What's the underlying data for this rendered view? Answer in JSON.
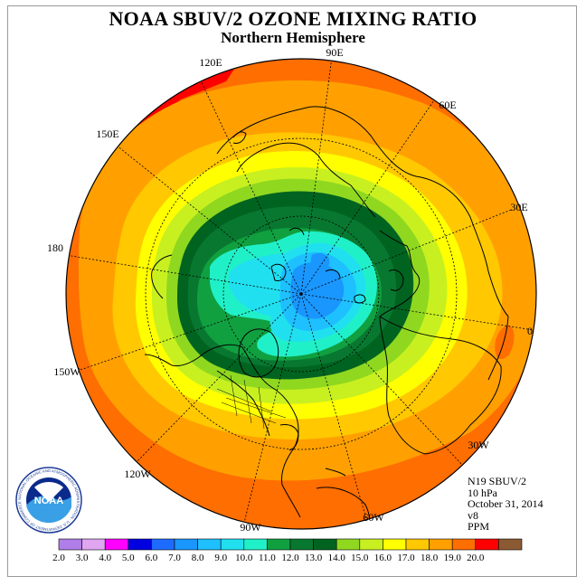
{
  "header": {
    "title": "NOAA SBUV/2 OZONE MIXING RATIO",
    "subtitle": "Northern Hemisphere"
  },
  "longitude_labels": [
    "90E",
    "60E",
    "30E",
    "0",
    "30W",
    "60W",
    "90W",
    "120W",
    "150W",
    "180",
    "150E",
    "120E"
  ],
  "info": {
    "satellite": "N19 SBUV/2",
    "pressure": "10 hPa",
    "date": "October 31, 2014",
    "version": "v8",
    "units": "PPM"
  },
  "logo": {
    "text": "NOAA",
    "ring_text": "NATIONAL OCEANIC AND ATMOSPHERIC ADMINISTRATION · U.S. DEPARTMENT OF COMMERCE"
  },
  "colorbar": {
    "ticks": [
      "2.0",
      "3.0",
      "4.0",
      "5.0",
      "6.0",
      "7.0",
      "8.0",
      "9.0",
      "10.0",
      "11.0",
      "12.0",
      "13.0",
      "14.0",
      "15.0",
      "16.0",
      "17.0",
      "18.0",
      "19.0",
      "20.0"
    ],
    "colors": [
      "#b07ee8",
      "#e0a6f2",
      "#ff00ff",
      "#0000e0",
      "#1e6cff",
      "#1a96ff",
      "#1ec0ff",
      "#20e0f0",
      "#20f0c8",
      "#10a040",
      "#087830",
      "#006420",
      "#90d820",
      "#c8f020",
      "#ffff00",
      "#ffc800",
      "#ffa000",
      "#ff6e00",
      "#ff0000",
      "#8c5a32"
    ]
  }
}
